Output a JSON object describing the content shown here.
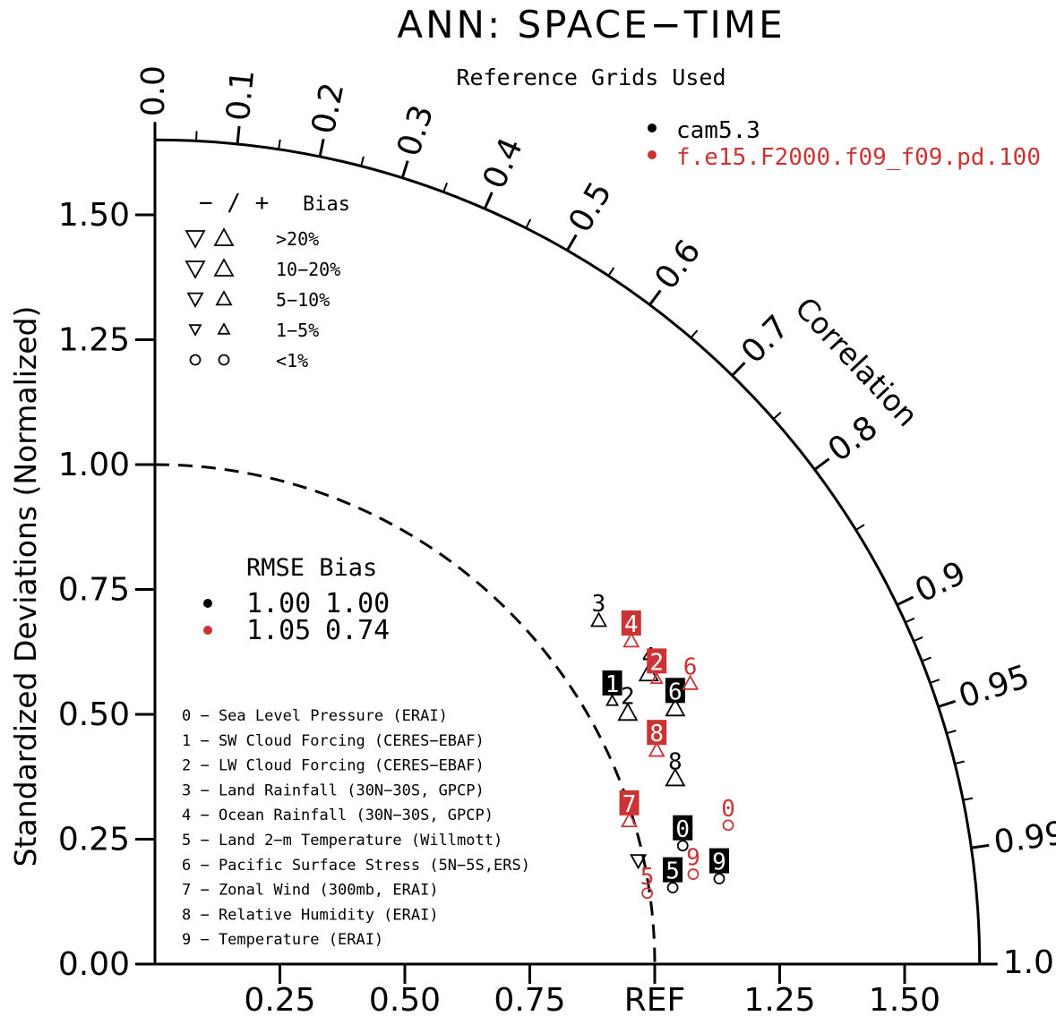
{
  "chart_data": {
    "type": "taylor",
    "title": "ANN: SPACE−TIME",
    "subtitle": "Reference Grids Used",
    "ylabel": "Standardized Deviations (Normalized)",
    "arc_label": "Correlation",
    "ref_label": "REF",
    "std_max": 1.65,
    "y_ticks": [
      "0.00",
      "0.25",
      "0.50",
      "0.75",
      "1.00",
      "1.25",
      "1.50"
    ],
    "x_ticks": [
      "0.25",
      "0.50",
      "0.75",
      "REF",
      "1.25",
      "1.50"
    ],
    "corr_labels": [
      "0.0",
      "0.1",
      "0.2",
      "0.3",
      "0.4",
      "0.5",
      "0.6",
      "0.7",
      "0.8",
      "0.9",
      "0.95",
      "0.99",
      "1.0"
    ],
    "models": [
      {
        "name": "cam5.3",
        "color": "#000000"
      },
      {
        "name": "f.e15.F2000.f09_f09.pd.100",
        "color": "#cc3333"
      }
    ],
    "bias_legend": {
      "header_signs": "− / +",
      "header_bias": "Bias",
      "rows": [
        "&gt;20%",
        "10−20%",
        "5−10%",
        "1−5%",
        "&lt;1%"
      ]
    },
    "score_legend": {
      "header": "RMSE Bias",
      "rows": [
        {
          "rmse": "1.00",
          "bias": "1.00"
        },
        {
          "rmse": "1.05",
          "bias": "0.74"
        }
      ]
    },
    "variables": [
      "0 − Sea Level Pressure (ERAI)",
      "1 − SW Cloud Forcing (CERES−EBAF)",
      "2 − LW Cloud Forcing (CERES−EBAF)",
      "3 − Land Rainfall (30N−30S, GPCP)",
      "4 − Ocean Rainfall (30N−30S, GPCP)",
      "5 − Land 2−m Temperature (Willmott)",
      "6 − Pacific Surface Stress (5N−5S,ERS)",
      "7 − Zonal Wind (300mb, ERAI)",
      "8 − Relative Humidity (ERAI)",
      "9 − Temperature (ERAI)"
    ],
    "points": [
      {
        "model": 0,
        "id": "0",
        "x": 1.056,
        "y": 0.237,
        "marker": "circle",
        "label": "box"
      },
      {
        "model": 0,
        "id": "1",
        "x": 0.915,
        "y": 0.527,
        "marker": "up-small",
        "label": "box"
      },
      {
        "model": 0,
        "id": "2",
        "x": 0.946,
        "y": 0.503,
        "marker": "up-large",
        "label": "plain"
      },
      {
        "model": 0,
        "id": "3",
        "x": 0.888,
        "y": 0.688,
        "marker": "up-medium",
        "label": "plain"
      },
      {
        "model": 0,
        "id": "4",
        "x": 0.988,
        "y": 0.582,
        "marker": "up-large",
        "label": "plain"
      },
      {
        "model": 0,
        "id": "5",
        "x": 1.036,
        "y": 0.153,
        "marker": "circle",
        "label": "box"
      },
      {
        "model": 0,
        "id": "6",
        "x": 1.041,
        "y": 0.512,
        "marker": "up-large",
        "label": "box"
      },
      {
        "model": 0,
        "id": "7",
        "x": 0.967,
        "y": 0.207,
        "marker": "down-medium",
        "label": "none"
      },
      {
        "model": 0,
        "id": "8",
        "x": 1.041,
        "y": 0.372,
        "marker": "up-large",
        "label": "plain"
      },
      {
        "model": 0,
        "id": "9",
        "x": 1.129,
        "y": 0.171,
        "marker": "circle",
        "label": "box"
      },
      {
        "model": 1,
        "id": "0",
        "x": 1.147,
        "y": 0.278,
        "marker": "circle",
        "label": "plain"
      },
      {
        "model": 1,
        "id": "2",
        "x": 1.004,
        "y": 0.571,
        "marker": "up-small",
        "label": "box"
      },
      {
        "model": 1,
        "id": "4",
        "x": 0.953,
        "y": 0.647,
        "marker": "up-medium",
        "label": "box"
      },
      {
        "model": 1,
        "id": "5",
        "x": 0.985,
        "y": 0.142,
        "marker": "circle",
        "label": "plain"
      },
      {
        "model": 1,
        "id": "6",
        "x": 1.071,
        "y": 0.562,
        "marker": "up-medium",
        "label": "plain"
      },
      {
        "model": 1,
        "id": "7",
        "x": 0.949,
        "y": 0.287,
        "marker": "up-medium",
        "label": "box"
      },
      {
        "model": 1,
        "id": "8",
        "x": 1.004,
        "y": 0.428,
        "marker": "up-medium",
        "label": "box"
      },
      {
        "model": 1,
        "id": "9",
        "x": 1.077,
        "y": 0.18,
        "marker": "circle",
        "label": "plain"
      }
    ]
  }
}
